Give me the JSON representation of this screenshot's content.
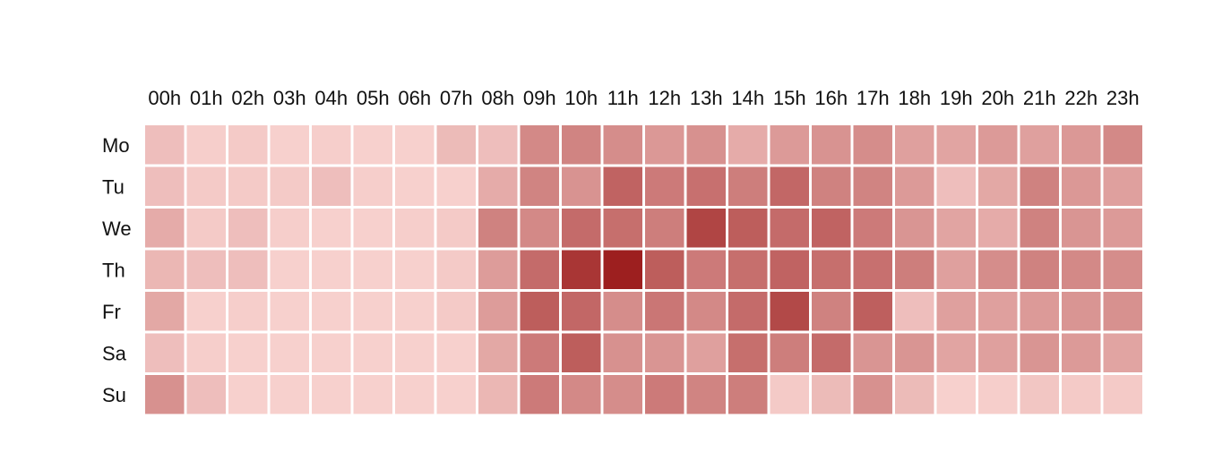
{
  "chart_data": {
    "type": "heatmap",
    "title": "",
    "xlabel": "",
    "ylabel": "",
    "x_labels": [
      "00h",
      "01h",
      "02h",
      "03h",
      "04h",
      "05h",
      "06h",
      "07h",
      "08h",
      "09h",
      "10h",
      "11h",
      "12h",
      "13h",
      "14h",
      "15h",
      "16h",
      "17h",
      "18h",
      "19h",
      "20h",
      "21h",
      "22h",
      "23h"
    ],
    "y_labels": [
      "Mo",
      "Tu",
      "We",
      "Th",
      "Fr",
      "Sa",
      "Su"
    ],
    "value_range": [
      0,
      1
    ],
    "color_low": "#fcd9d6",
    "color_high": "#9b1b1b",
    "values": [
      [
        0.14,
        0.06,
        0.08,
        0.05,
        0.06,
        0.05,
        0.05,
        0.16,
        0.14,
        0.42,
        0.45,
        0.4,
        0.34,
        0.38,
        0.24,
        0.33,
        0.37,
        0.4,
        0.3,
        0.28,
        0.33,
        0.3,
        0.34,
        0.42
      ],
      [
        0.14,
        0.08,
        0.08,
        0.08,
        0.14,
        0.06,
        0.05,
        0.05,
        0.24,
        0.45,
        0.37,
        0.62,
        0.5,
        0.55,
        0.48,
        0.6,
        0.46,
        0.45,
        0.33,
        0.14,
        0.26,
        0.46,
        0.34,
        0.3
      ],
      [
        0.24,
        0.08,
        0.14,
        0.06,
        0.05,
        0.05,
        0.06,
        0.08,
        0.46,
        0.42,
        0.58,
        0.56,
        0.48,
        0.78,
        0.65,
        0.58,
        0.62,
        0.5,
        0.36,
        0.28,
        0.24,
        0.46,
        0.36,
        0.33
      ],
      [
        0.18,
        0.14,
        0.14,
        0.05,
        0.05,
        0.05,
        0.05,
        0.08,
        0.32,
        0.58,
        0.86,
        0.98,
        0.65,
        0.5,
        0.56,
        0.62,
        0.56,
        0.55,
        0.48,
        0.3,
        0.4,
        0.46,
        0.42,
        0.4
      ],
      [
        0.26,
        0.05,
        0.06,
        0.05,
        0.05,
        0.05,
        0.05,
        0.08,
        0.32,
        0.65,
        0.6,
        0.4,
        0.52,
        0.42,
        0.58,
        0.76,
        0.46,
        0.64,
        0.14,
        0.3,
        0.3,
        0.33,
        0.36,
        0.38
      ],
      [
        0.14,
        0.06,
        0.05,
        0.05,
        0.05,
        0.05,
        0.05,
        0.05,
        0.26,
        0.5,
        0.65,
        0.38,
        0.36,
        0.3,
        0.56,
        0.48,
        0.58,
        0.36,
        0.36,
        0.28,
        0.3,
        0.36,
        0.33,
        0.28
      ],
      [
        0.38,
        0.14,
        0.05,
        0.05,
        0.05,
        0.05,
        0.05,
        0.05,
        0.18,
        0.5,
        0.42,
        0.4,
        0.5,
        0.45,
        0.48,
        0.08,
        0.16,
        0.38,
        0.16,
        0.05,
        0.06,
        0.1,
        0.08,
        0.08
      ]
    ]
  }
}
